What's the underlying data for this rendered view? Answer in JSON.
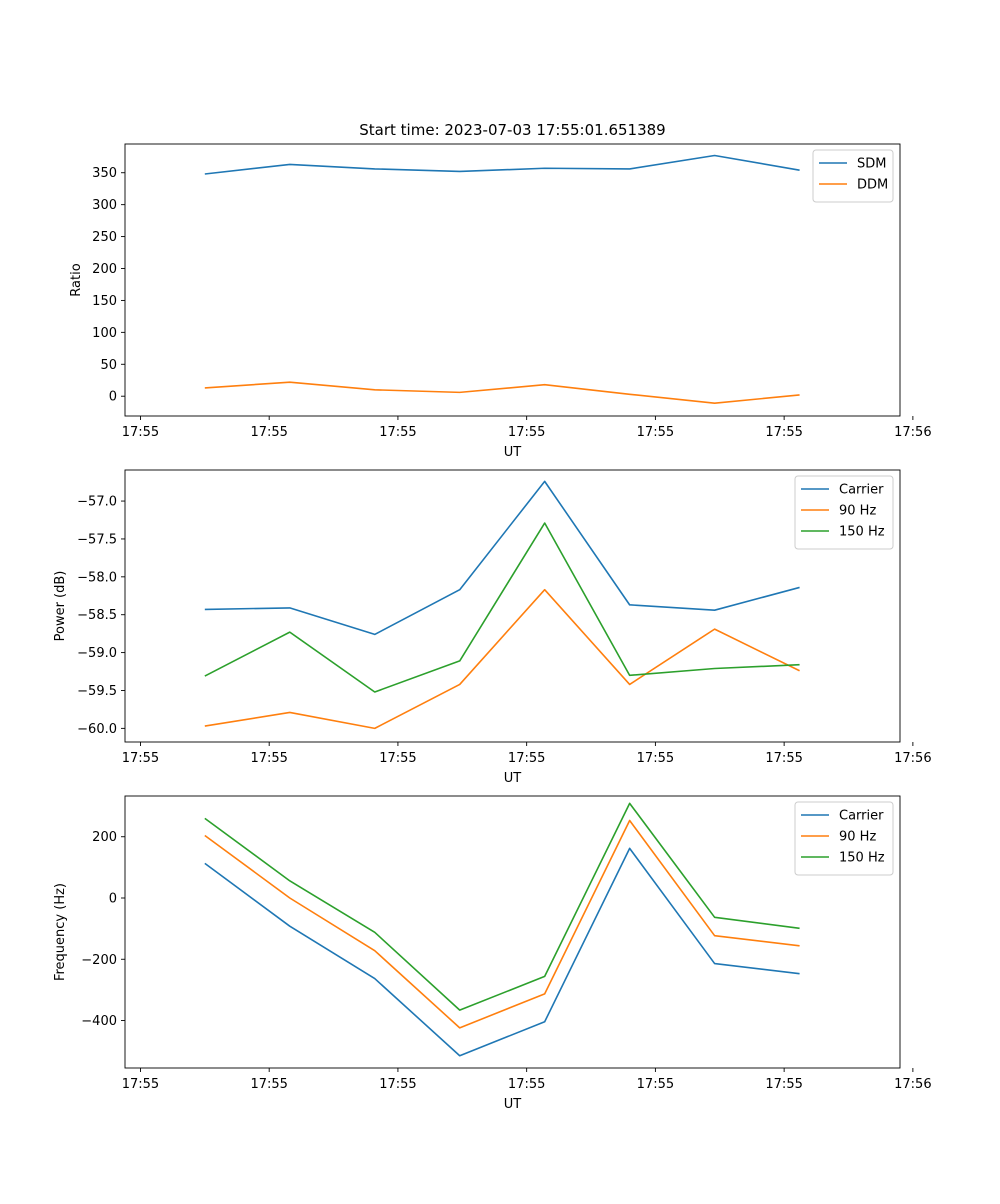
{
  "figure": {
    "title": "Start time: 2023-07-03 17:55:01.651389"
  },
  "colors": {
    "blue": "#1f77b4",
    "orange": "#ff7f0e",
    "green": "#2ca02c"
  },
  "chart_data": [
    {
      "type": "line",
      "title": "Start time: 2023-07-03 17:55:01.651389",
      "xlabel": "UT",
      "ylabel": "Ratio",
      "xlim": [
        -0.62,
        5.4
      ],
      "ylim": [
        -31,
        395
      ],
      "xticks": [
        {
          "v": -0.5,
          "label": "17:55"
        },
        {
          "v": 0.5,
          "label": "17:55"
        },
        {
          "v": 1.5,
          "label": "17:55"
        },
        {
          "v": 2.5,
          "label": "17:55"
        },
        {
          "v": 3.5,
          "label": "17:55"
        },
        {
          "v": 4.5,
          "label": "17:55"
        },
        {
          "v": 5.5,
          "label": "17:56"
        }
      ],
      "yticks": [
        0,
        50,
        100,
        150,
        200,
        250,
        300,
        350
      ],
      "ytick_labels": [
        "0",
        "50",
        "100",
        "150",
        "200",
        "250",
        "300",
        "350"
      ],
      "x": [
        0,
        0.66,
        1.32,
        1.98,
        2.64,
        3.3,
        3.96,
        4.62
      ],
      "legend_position": "top-right",
      "series": [
        {
          "name": "SDM",
          "color": "#1f77b4",
          "values": [
            348,
            363,
            356,
            352,
            357,
            356,
            377,
            354
          ]
        },
        {
          "name": "DDM",
          "color": "#ff7f0e",
          "values": [
            13,
            22,
            10,
            6,
            18,
            3,
            -11,
            2
          ]
        }
      ]
    },
    {
      "type": "line",
      "title": "",
      "xlabel": "UT",
      "ylabel": "Power (dB)",
      "xlim": [
        -0.62,
        5.4
      ],
      "ylim": [
        -60.18,
        -56.59
      ],
      "xticks": [
        {
          "v": -0.5,
          "label": "17:55"
        },
        {
          "v": 0.5,
          "label": "17:55"
        },
        {
          "v": 1.5,
          "label": "17:55"
        },
        {
          "v": 2.5,
          "label": "17:55"
        },
        {
          "v": 3.5,
          "label": "17:55"
        },
        {
          "v": 4.5,
          "label": "17:55"
        },
        {
          "v": 5.5,
          "label": "17:56"
        }
      ],
      "yticks": [
        -60.0,
        -59.5,
        -59.0,
        -58.5,
        -58.0,
        -57.5,
        -57.0
      ],
      "ytick_labels": [
        "−60.0",
        "−59.5",
        "−59.0",
        "−58.5",
        "−58.0",
        "−57.5",
        "−57.0"
      ],
      "x": [
        0,
        0.66,
        1.32,
        1.98,
        2.64,
        3.3,
        3.96,
        4.62
      ],
      "legend_position": "top-right",
      "series": [
        {
          "name": "Carrier",
          "color": "#1f77b4",
          "values": [
            -58.43,
            -58.41,
            -58.76,
            -58.17,
            -56.74,
            -58.37,
            -58.44,
            -58.14
          ]
        },
        {
          "name": "90 Hz",
          "color": "#ff7f0e",
          "values": [
            -59.97,
            -59.79,
            -60.0,
            -59.42,
            -58.17,
            -59.42,
            -58.69,
            -59.24
          ]
        },
        {
          "name": "150 Hz",
          "color": "#2ca02c",
          "values": [
            -59.31,
            -58.73,
            -59.52,
            -59.11,
            -57.29,
            -59.3,
            -59.21,
            -59.16
          ]
        }
      ]
    },
    {
      "type": "line",
      "title": "",
      "xlabel": "UT",
      "ylabel": "Frequency (Hz)",
      "xlim": [
        -0.62,
        5.4
      ],
      "ylim": [
        -555,
        333
      ],
      "xticks": [
        {
          "v": -0.5,
          "label": "17:55"
        },
        {
          "v": 0.5,
          "label": "17:55"
        },
        {
          "v": 1.5,
          "label": "17:55"
        },
        {
          "v": 2.5,
          "label": "17:55"
        },
        {
          "v": 3.5,
          "label": "17:55"
        },
        {
          "v": 4.5,
          "label": "17:55"
        },
        {
          "v": 5.5,
          "label": "17:56"
        }
      ],
      "yticks": [
        -400,
        -200,
        0,
        200
      ],
      "ytick_labels": [
        "−400",
        "−200",
        "0",
        "200"
      ],
      "x": [
        0,
        0.66,
        1.32,
        1.98,
        2.64,
        3.3,
        3.96,
        4.62
      ],
      "legend_position": "top-right",
      "series": [
        {
          "name": "Carrier",
          "color": "#1f77b4",
          "values": [
            113,
            -92,
            -263,
            -515,
            -404,
            162,
            -214,
            -247
          ]
        },
        {
          "name": "90 Hz",
          "color": "#ff7f0e",
          "values": [
            204,
            0,
            -172,
            -424,
            -313,
            253,
            -123,
            -156
          ]
        },
        {
          "name": "150 Hz",
          "color": "#2ca02c",
          "values": [
            260,
            56,
            -112,
            -366,
            -256,
            309,
            -63,
            -99
          ]
        }
      ]
    }
  ]
}
